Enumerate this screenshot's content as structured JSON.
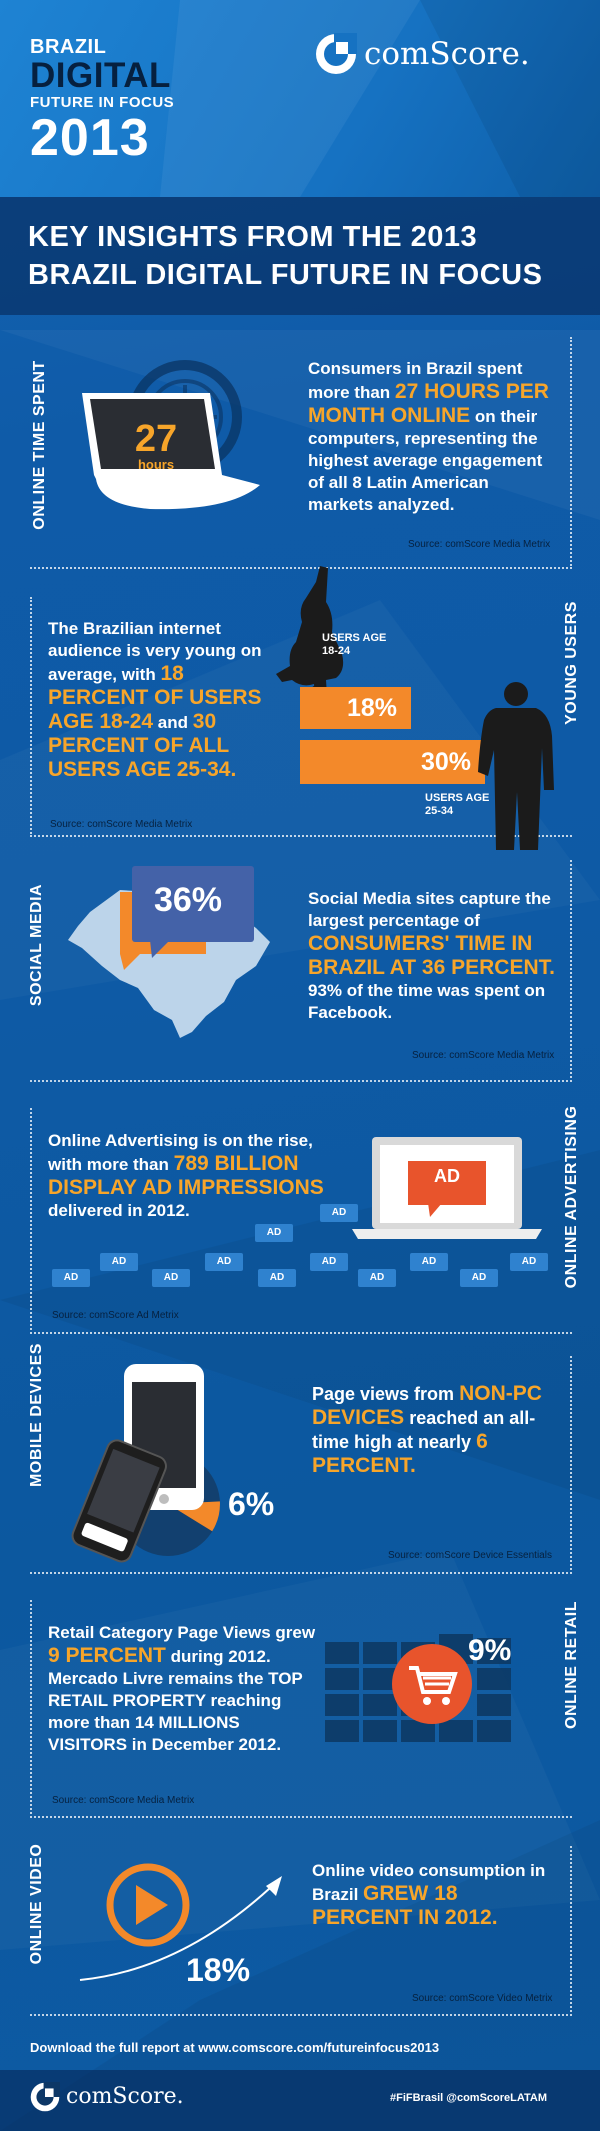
{
  "header": {
    "line1": "BRAZIL",
    "line2": "DIGITAL",
    "line3": "FUTURE IN FOCUS",
    "line4": "2013",
    "brand": "comScore."
  },
  "banner": {
    "line1": "KEY INSIGHTS FROM THE 2013",
    "line2": "BRAZIL DIGITAL FUTURE IN FOCUS"
  },
  "online_time": {
    "label": "ONLINE TIME SPENT",
    "value": "27",
    "unit": "hours",
    "text_pre": "Consumers in Brazil spent more than",
    "highlight": "27 HOURS PER MONTH ONLINE",
    "text_post": "on their computers, representing the highest average engagement of all 8 Latin American markets analyzed.",
    "source": "Source: comScore Media Metrix"
  },
  "young_users": {
    "label": "YOUNG USERS",
    "text_pre": "The Brazilian internet audience is very young on average, with",
    "highlight1": "18 PERCENT OF USERS AGE 18-24",
    "text_mid": "and",
    "highlight2": "30 PERCENT OF ALL USERS AGE 25-34.",
    "bar1_label": "USERS AGE 18-24",
    "bar1_value": "18%",
    "bar1_fraction": 0.18,
    "bar2_label": "USERS AGE 25-34",
    "bar2_value": "30%",
    "bar2_fraction": 0.3,
    "source": "Source: comScore Media Metrix"
  },
  "social_media": {
    "label": "SOCIAL MEDIA",
    "value": "36%",
    "text_pre": "Social Media sites capture the largest percentage of",
    "highlight": "CONSUMERS' TIME IN BRAZIL AT 36 PERCENT.",
    "text_post": "93% of the time was spent on Facebook.",
    "source": "Source: comScore Media Metrix"
  },
  "online_advertising": {
    "label": "ONLINE ADVERTISING",
    "text_pre": "Online Advertising is on the rise, with more than",
    "highlight": "789 BILLION DISPLAY AD IMPRESSIONS",
    "text_post": "delivered in 2012.",
    "ad_label": "AD",
    "source": "Source: comScore Ad Metrix"
  },
  "mobile_devices": {
    "label": "MOBILE DEVICES",
    "value": "6%",
    "value_fraction": 0.06,
    "text_pre": "Page views from",
    "highlight1": "NON-PC DEVICES",
    "text_mid": "reached an all-time high at nearly",
    "highlight2": "6 PERCENT.",
    "source": "Source: comScore Device Essentials"
  },
  "online_retail": {
    "label": "ONLINE RETAIL",
    "value": "9%",
    "text_pre": "Retail Category Page Views grew",
    "highlight": "9 PERCENT",
    "text_post": "during 2012. Mercado Livre remains the TOP RETAIL PROPERTY reaching more than 14 MILLIONS VISITORS in December 2012.",
    "source": "Source: comScore Media Metrix"
  },
  "online_video": {
    "label": "ONLINE VIDEO",
    "value": "18%",
    "text_pre": "Online video consumption in Brazil",
    "highlight": "GREW 18 PERCENT IN 2012.",
    "source": "Source: comScore Video Metrix"
  },
  "footer": {
    "download": "Download the full report at www.comscore.com/futureinfocus2013",
    "brand": "comScore.",
    "hashtag": "#FiFBrasil @comScoreLATAM"
  },
  "colors": {
    "accent_orange": "#f3892a",
    "highlight_gold": "#f7a52a",
    "background_blue": "#0e5aa5",
    "banner_dark": "#0a2d5e",
    "social_bubble": "#4462a8"
  }
}
